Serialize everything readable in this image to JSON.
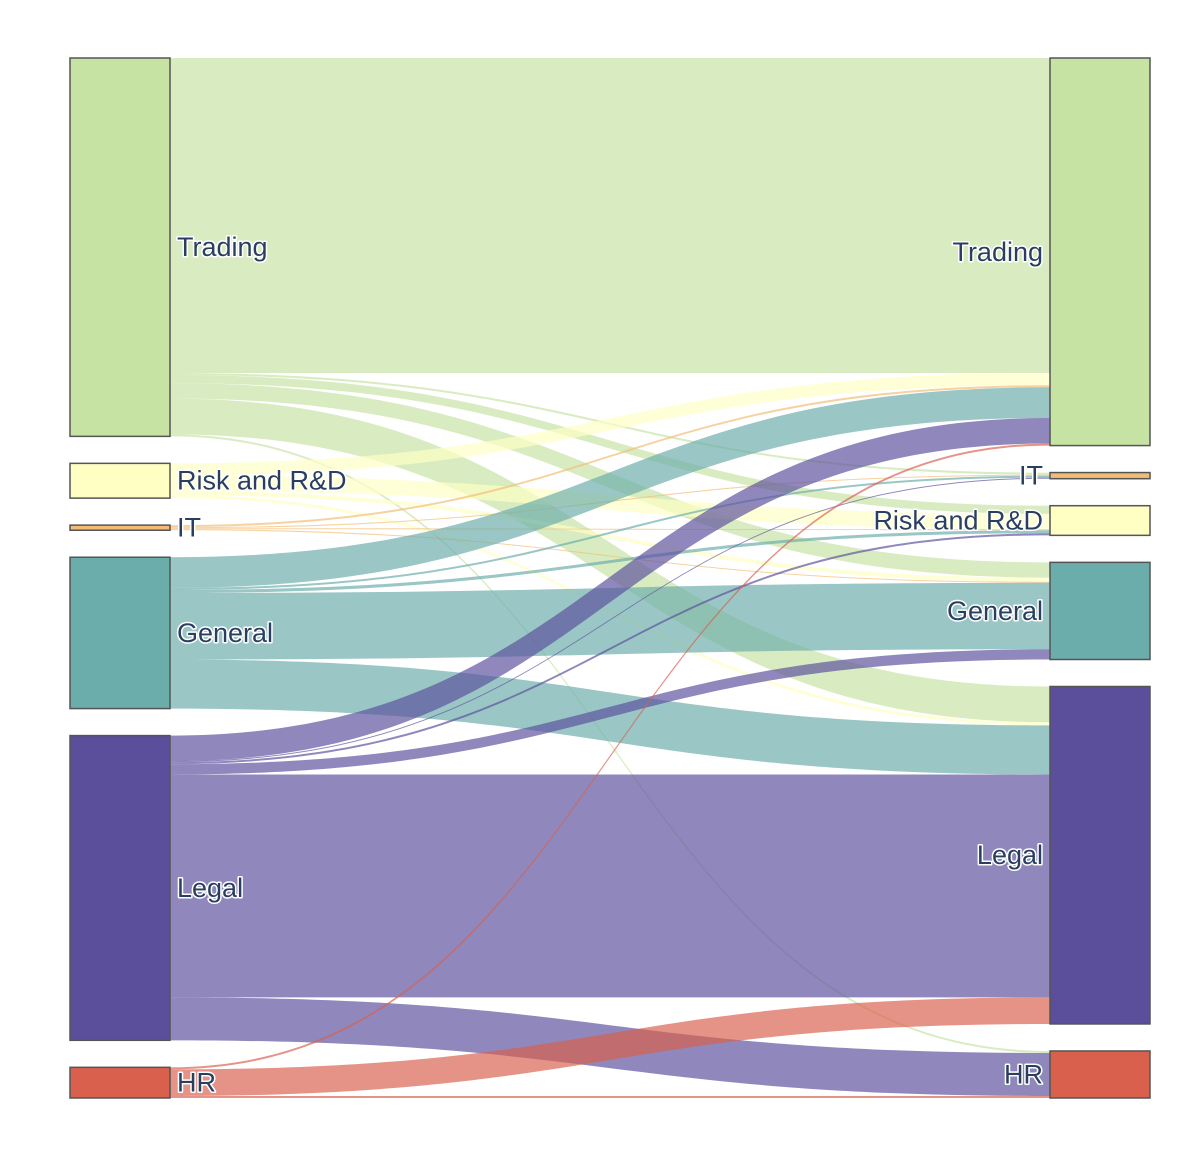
{
  "chart_data": {
    "type": "sankey",
    "colors": {
      "trading": "#c7e3a4",
      "risk_rd": "#ffffc4",
      "it": "#f2bc74",
      "general": "#6aadaa",
      "legal": "#5b4f9c",
      "hr": "#d9604c",
      "node_border": "#555555"
    },
    "source_nodes": [
      {
        "id": "src-trading",
        "label": "Trading",
        "color_key": "trading"
      },
      {
        "id": "src-risk",
        "label": "Risk and R&D",
        "color_key": "risk_rd"
      },
      {
        "id": "src-it",
        "label": "IT",
        "color_key": "it"
      },
      {
        "id": "src-general",
        "label": "General",
        "color_key": "general"
      },
      {
        "id": "src-legal",
        "label": "Legal",
        "color_key": "legal"
      },
      {
        "id": "src-hr",
        "label": "HR",
        "color_key": "hr"
      }
    ],
    "target_nodes": [
      {
        "id": "tgt-trading",
        "label": "Trading",
        "color_key": "trading"
      },
      {
        "id": "tgt-it",
        "label": "IT",
        "color_key": "it"
      },
      {
        "id": "tgt-risk",
        "label": "Risk and R&D",
        "color_key": "risk_rd"
      },
      {
        "id": "tgt-general",
        "label": "General",
        "color_key": "general"
      },
      {
        "id": "tgt-legal",
        "label": "Legal",
        "color_key": "legal"
      },
      {
        "id": "tgt-hr",
        "label": "HR",
        "color_key": "hr"
      }
    ],
    "links": [
      {
        "source": "src-trading",
        "target": "tgt-trading",
        "value": 308
      },
      {
        "source": "src-trading",
        "target": "tgt-it",
        "value": 2
      },
      {
        "source": "src-trading",
        "target": "tgt-risk",
        "value": 8
      },
      {
        "source": "src-trading",
        "target": "tgt-general",
        "value": 15
      },
      {
        "source": "src-trading",
        "target": "tgt-legal",
        "value": 35
      },
      {
        "source": "src-trading",
        "target": "tgt-hr",
        "value": 2
      },
      {
        "source": "src-risk",
        "target": "tgt-trading",
        "value": 12
      },
      {
        "source": "src-risk",
        "target": "tgt-risk",
        "value": 15
      },
      {
        "source": "src-risk",
        "target": "tgt-general",
        "value": 4
      },
      {
        "source": "src-risk",
        "target": "tgt-legal",
        "value": 3
      },
      {
        "source": "src-it",
        "target": "tgt-trading",
        "value": 2
      },
      {
        "source": "src-it",
        "target": "tgt-it",
        "value": 1
      },
      {
        "source": "src-it",
        "target": "tgt-risk",
        "value": 1
      },
      {
        "source": "src-it",
        "target": "tgt-general",
        "value": 1
      },
      {
        "source": "src-general",
        "target": "tgt-trading",
        "value": 30
      },
      {
        "source": "src-general",
        "target": "tgt-it",
        "value": 2
      },
      {
        "source": "src-general",
        "target": "tgt-risk",
        "value": 3
      },
      {
        "source": "src-general",
        "target": "tgt-general",
        "value": 65
      },
      {
        "source": "src-general",
        "target": "tgt-legal",
        "value": 48
      },
      {
        "source": "src-legal",
        "target": "tgt-trading",
        "value": 25
      },
      {
        "source": "src-legal",
        "target": "tgt-it",
        "value": 1
      },
      {
        "source": "src-legal",
        "target": "tgt-risk",
        "value": 2
      },
      {
        "source": "src-legal",
        "target": "tgt-general",
        "value": 10
      },
      {
        "source": "src-legal",
        "target": "tgt-legal",
        "value": 218
      },
      {
        "source": "src-legal",
        "target": "tgt-hr",
        "value": 42
      },
      {
        "source": "src-hr",
        "target": "tgt-trading",
        "value": 2
      },
      {
        "source": "src-hr",
        "target": "tgt-legal",
        "value": 26
      },
      {
        "source": "src-hr",
        "target": "tgt-hr",
        "value": 2
      }
    ]
  }
}
